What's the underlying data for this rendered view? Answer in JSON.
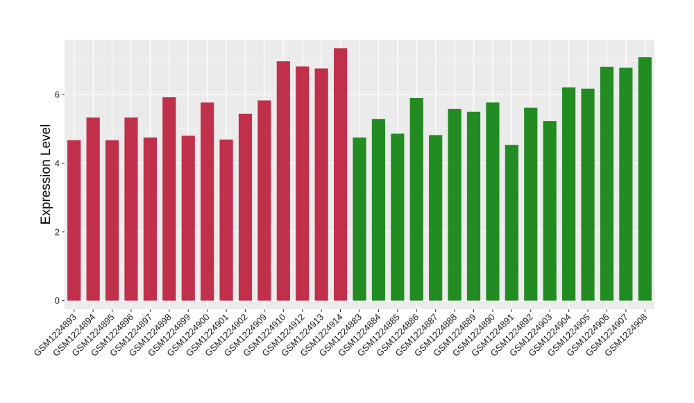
{
  "chart_data": {
    "type": "bar",
    "ylabel": "Expression Level",
    "xlabel": "",
    "ylim": [
      -0.25,
      7.6
    ],
    "yticks": [
      0,
      2,
      4,
      6
    ],
    "grid": true,
    "legend": "none",
    "colors": {
      "group_a": "#c1304a",
      "group_b": "#228b22",
      "panel_bg": "#ebebeb",
      "grid": "#ffffff"
    },
    "categories": [
      "GSM1224893",
      "GSM1224894",
      "GSM1224895",
      "GSM1224896",
      "GSM1224897",
      "GSM1224898",
      "GSM1224899",
      "GSM1224900",
      "GSM1224901",
      "GSM1224902",
      "GSM1224909",
      "GSM1224910",
      "GSM1224912",
      "GSM1224913",
      "GSM1224914",
      "GSM1224883",
      "GSM1224884",
      "GSM1224885",
      "GSM1224886",
      "GSM1224887",
      "GSM1224888",
      "GSM1224889",
      "GSM1224890",
      "GSM1224891",
      "GSM1224892",
      "GSM1224903",
      "GSM1224904",
      "GSM1224905",
      "GSM1224906",
      "GSM1224907",
      "GSM1224908"
    ],
    "values": [
      4.67,
      5.33,
      4.67,
      5.33,
      4.75,
      5.92,
      4.8,
      5.77,
      4.69,
      5.44,
      5.83,
      6.97,
      6.82,
      6.76,
      7.35,
      4.75,
      5.29,
      4.86,
      5.9,
      4.82,
      5.58,
      5.5,
      5.77,
      4.53,
      5.62,
      5.23,
      6.21,
      6.17,
      6.81,
      6.78,
      7.09
    ],
    "groups": [
      "a",
      "a",
      "a",
      "a",
      "a",
      "a",
      "a",
      "a",
      "a",
      "a",
      "a",
      "a",
      "a",
      "a",
      "a",
      "b",
      "b",
      "b",
      "b",
      "b",
      "b",
      "b",
      "b",
      "b",
      "b",
      "b",
      "b",
      "b",
      "b",
      "b",
      "b"
    ]
  }
}
